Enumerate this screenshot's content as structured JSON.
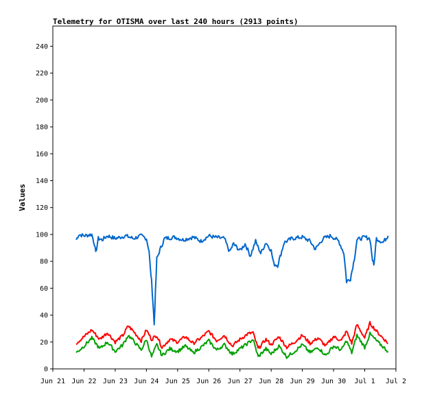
{
  "chart_data": {
    "type": "line",
    "title": "Telemetry for OTISMA over last 240 hours (2913 points)",
    "xlabel": "",
    "ylabel": "Values",
    "ylim": [
      0,
      255
    ],
    "yticks": [
      0,
      20,
      40,
      60,
      80,
      100,
      120,
      140,
      160,
      180,
      200,
      220,
      240
    ],
    "xlim": [
      "2021-06-21",
      "2021-07-02"
    ],
    "xticks": [
      {
        "date": "2021-06-21",
        "label": "Jun 21"
      },
      {
        "date": "2021-06-22",
        "label": "Jun 22"
      },
      {
        "date": "2021-06-23",
        "label": "Jun 23"
      },
      {
        "date": "2021-06-24",
        "label": "Jun 24"
      },
      {
        "date": "2021-06-25",
        "label": "Jun 25"
      },
      {
        "date": "2021-06-26",
        "label": "Jun 26"
      },
      {
        "date": "2021-06-27",
        "label": "Jun 27"
      },
      {
        "date": "2021-06-28",
        "label": "Jun 28"
      },
      {
        "date": "2021-06-29",
        "label": "Jun 29"
      },
      {
        "date": "2021-06-30",
        "label": "Jun 30"
      },
      {
        "date": "2021-07-01",
        "label": "Jul 1"
      },
      {
        "date": "2021-07-02",
        "label": "Jul 2"
      }
    ],
    "grid": false,
    "series": [
      {
        "color": "#0066cc",
        "points": [
          [
            "2021-06-21 18:00",
            96
          ],
          [
            "2021-06-21 20:00",
            100
          ],
          [
            "2021-06-22 00:00",
            99
          ],
          [
            "2021-06-22 06:00",
            100
          ],
          [
            "2021-06-22 08:00",
            93
          ],
          [
            "2021-06-22 09:00",
            86
          ],
          [
            "2021-06-22 11:00",
            97
          ],
          [
            "2021-06-22 14:00",
            96
          ],
          [
            "2021-06-22 18:00",
            99
          ],
          [
            "2021-06-23 00:00",
            97
          ],
          [
            "2021-06-23 08:00",
            99
          ],
          [
            "2021-06-23 14:00",
            97
          ],
          [
            "2021-06-23 20:00",
            99
          ],
          [
            "2021-06-24 00:00",
            97
          ],
          [
            "2021-06-24 02:00",
            88
          ],
          [
            "2021-06-24 03:00",
            75
          ],
          [
            "2021-06-24 04:00",
            65
          ],
          [
            "2021-06-24 05:00",
            50
          ],
          [
            "2021-06-24 06:00",
            33
          ],
          [
            "2021-06-24 07:00",
            58
          ],
          [
            "2021-06-24 08:00",
            82
          ],
          [
            "2021-06-24 11:00",
            90
          ],
          [
            "2021-06-24 14:00",
            97
          ],
          [
            "2021-06-24 22:00",
            98
          ],
          [
            "2021-06-25 04:00",
            96
          ],
          [
            "2021-06-25 12:00",
            98
          ],
          [
            "2021-06-25 18:00",
            95
          ],
          [
            "2021-06-26 00:00",
            99
          ],
          [
            "2021-06-26 04:00",
            98
          ],
          [
            "2021-06-26 12:00",
            97
          ],
          [
            "2021-06-26 16:00",
            87
          ],
          [
            "2021-06-26 19:00",
            93
          ],
          [
            "2021-06-27 00:00",
            88
          ],
          [
            "2021-06-27 04:00",
            93
          ],
          [
            "2021-06-27 08:00",
            84
          ],
          [
            "2021-06-27 12:00",
            95
          ],
          [
            "2021-06-27 16:00",
            86
          ],
          [
            "2021-06-27 20:00",
            94
          ],
          [
            "2021-06-28 00:00",
            88
          ],
          [
            "2021-06-28 02:00",
            78
          ],
          [
            "2021-06-28 05:00",
            77
          ],
          [
            "2021-06-28 10:00",
            94
          ],
          [
            "2021-06-28 16:00",
            97
          ],
          [
            "2021-06-29 00:00",
            98
          ],
          [
            "2021-06-29 06:00",
            95
          ],
          [
            "2021-06-29 10:00",
            89
          ],
          [
            "2021-06-29 16:00",
            97
          ],
          [
            "2021-06-29 22:00",
            99
          ],
          [
            "2021-06-30 04:00",
            95
          ],
          [
            "2021-06-30 08:00",
            86
          ],
          [
            "2021-06-30 10:00",
            65
          ],
          [
            "2021-06-30 13:00",
            67
          ],
          [
            "2021-06-30 16:00",
            82
          ],
          [
            "2021-06-30 18:00",
            96
          ],
          [
            "2021-07-01 00:00",
            98
          ],
          [
            "2021-07-01 04:00",
            97
          ],
          [
            "2021-07-01 06:00",
            81
          ],
          [
            "2021-07-01 07:00",
            77
          ],
          [
            "2021-07-01 09:00",
            97
          ],
          [
            "2021-07-01 14:00",
            94
          ],
          [
            "2021-07-01 18:00",
            99
          ]
        ]
      },
      {
        "color": "#ff0000",
        "points": [
          [
            "2021-06-21 18:00",
            19
          ],
          [
            "2021-06-22 00:00",
            24
          ],
          [
            "2021-06-22 06:00",
            29
          ],
          [
            "2021-06-22 12:00",
            22
          ],
          [
            "2021-06-22 18:00",
            27
          ],
          [
            "2021-06-23 00:00",
            20
          ],
          [
            "2021-06-23 06:00",
            25
          ],
          [
            "2021-06-23 10:00",
            32
          ],
          [
            "2021-06-23 14:00",
            28
          ],
          [
            "2021-06-23 20:00",
            21
          ],
          [
            "2021-06-24 00:00",
            29
          ],
          [
            "2021-06-24 04:00",
            22
          ],
          [
            "2021-06-24 08:00",
            25
          ],
          [
            "2021-06-24 12:00",
            16
          ],
          [
            "2021-06-24 18:00",
            22
          ],
          [
            "2021-06-25 00:00",
            20
          ],
          [
            "2021-06-25 06:00",
            24
          ],
          [
            "2021-06-25 12:00",
            19
          ],
          [
            "2021-06-25 18:00",
            23
          ],
          [
            "2021-06-26 00:00",
            28
          ],
          [
            "2021-06-26 06:00",
            21
          ],
          [
            "2021-06-26 12:00",
            25
          ],
          [
            "2021-06-26 18:00",
            17
          ],
          [
            "2021-06-27 00:00",
            22
          ],
          [
            "2021-06-27 06:00",
            26
          ],
          [
            "2021-06-27 10:00",
            27
          ],
          [
            "2021-06-27 14:00",
            15
          ],
          [
            "2021-06-27 20:00",
            22
          ],
          [
            "2021-06-28 00:00",
            18
          ],
          [
            "2021-06-28 06:00",
            24
          ],
          [
            "2021-06-28 12:00",
            16
          ],
          [
            "2021-06-28 18:00",
            20
          ],
          [
            "2021-06-29 00:00",
            25
          ],
          [
            "2021-06-29 06:00",
            19
          ],
          [
            "2021-06-29 12:00",
            23
          ],
          [
            "2021-06-29 18:00",
            17
          ],
          [
            "2021-06-30 00:00",
            24
          ],
          [
            "2021-06-30 06:00",
            21
          ],
          [
            "2021-06-30 10:00",
            28
          ],
          [
            "2021-06-30 14:00",
            19
          ],
          [
            "2021-06-30 18:00",
            33
          ],
          [
            "2021-07-01 00:00",
            23
          ],
          [
            "2021-07-01 04:00",
            34
          ],
          [
            "2021-07-01 10:00",
            27
          ],
          [
            "2021-07-01 18:00",
            19
          ]
        ]
      },
      {
        "color": "#00a000",
        "points": [
          [
            "2021-06-21 18:00",
            12
          ],
          [
            "2021-06-22 00:00",
            17
          ],
          [
            "2021-06-22 06:00",
            23
          ],
          [
            "2021-06-22 12:00",
            15
          ],
          [
            "2021-06-22 18:00",
            20
          ],
          [
            "2021-06-23 00:00",
            13
          ],
          [
            "2021-06-23 06:00",
            18
          ],
          [
            "2021-06-23 10:00",
            25
          ],
          [
            "2021-06-23 14:00",
            21
          ],
          [
            "2021-06-23 20:00",
            14
          ],
          [
            "2021-06-24 00:00",
            22
          ],
          [
            "2021-06-24 04:00",
            9
          ],
          [
            "2021-06-24 08:00",
            18
          ],
          [
            "2021-06-24 12:00",
            10
          ],
          [
            "2021-06-24 18:00",
            15
          ],
          [
            "2021-06-25 00:00",
            13
          ],
          [
            "2021-06-25 06:00",
            17
          ],
          [
            "2021-06-25 12:00",
            12
          ],
          [
            "2021-06-25 18:00",
            16
          ],
          [
            "2021-06-26 00:00",
            21
          ],
          [
            "2021-06-26 06:00",
            14
          ],
          [
            "2021-06-26 12:00",
            18
          ],
          [
            "2021-06-26 18:00",
            11
          ],
          [
            "2021-06-27 00:00",
            15
          ],
          [
            "2021-06-27 06:00",
            19
          ],
          [
            "2021-06-27 10:00",
            22
          ],
          [
            "2021-06-27 14:00",
            9
          ],
          [
            "2021-06-27 20:00",
            15
          ],
          [
            "2021-06-28 00:00",
            11
          ],
          [
            "2021-06-28 06:00",
            17
          ],
          [
            "2021-06-28 12:00",
            9
          ],
          [
            "2021-06-28 18:00",
            13
          ],
          [
            "2021-06-29 00:00",
            18
          ],
          [
            "2021-06-29 06:00",
            12
          ],
          [
            "2021-06-29 12:00",
            16
          ],
          [
            "2021-06-29 18:00",
            10
          ],
          [
            "2021-06-30 00:00",
            17
          ],
          [
            "2021-06-30 06:00",
            14
          ],
          [
            "2021-06-30 10:00",
            21
          ],
          [
            "2021-06-30 14:00",
            12
          ],
          [
            "2021-06-30 18:00",
            25
          ],
          [
            "2021-07-01 00:00",
            16
          ],
          [
            "2021-07-01 04:00",
            26
          ],
          [
            "2021-07-01 10:00",
            20
          ],
          [
            "2021-07-01 18:00",
            13
          ]
        ]
      }
    ]
  }
}
